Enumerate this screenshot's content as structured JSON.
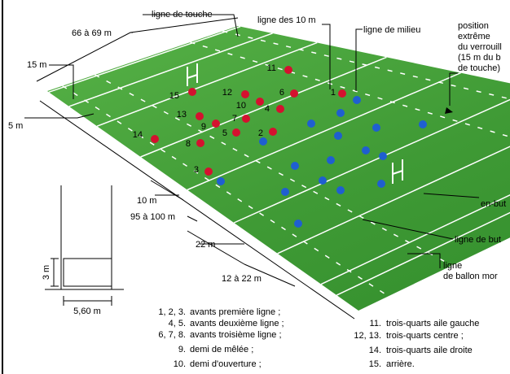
{
  "labels": {
    "touch_line": "ligne de touche",
    "ten_m_line": "ligne des 10 m",
    "half_way_line": "ligne de milieu",
    "lock_position": [
      "position",
      "extrême",
      "du verrouill",
      "(15 m du b",
      "de touche)"
    ],
    "width": "66 à 69 m",
    "fifteen_m": "15 m",
    "five_m": "5 m",
    "ten_m": "10 m",
    "length": "95 à 100 m",
    "twenty_two_m": "22 m",
    "in_goal_depth": "12 à 22 m",
    "in_goal": "en-but",
    "goal_line": "ligne de but",
    "dead_ball_line": [
      "ligne",
      "de ballon mor"
    ]
  },
  "inset": {
    "height": "3 m",
    "width": "5,60 m"
  },
  "players": [
    "1",
    "2",
    "3",
    "4",
    "5",
    "6",
    "7",
    "8",
    "9",
    "10",
    "11",
    "12",
    "13",
    "14",
    "15"
  ],
  "legend": {
    "left": [
      {
        "numbers": "1, 2, 3.",
        "role": "avants première ligne ;"
      },
      {
        "numbers": "4, 5.",
        "role": "avants deuxième ligne ;"
      },
      {
        "numbers": "6, 7, 8.",
        "role": "avants troisième ligne ;"
      },
      {
        "numbers": "9.",
        "role": "demi de mêlée ;"
      },
      {
        "numbers": "10.",
        "role": "demi d'ouverture ;"
      }
    ],
    "right": [
      {
        "numbers": "11.",
        "role": "trois-quarts aile gauche"
      },
      {
        "numbers": "12, 13.",
        "role": "trois-quarts centre ;"
      },
      {
        "numbers": "14.",
        "role": "trois-quarts aile droite"
      },
      {
        "numbers": "15.",
        "role": "arrière."
      }
    ]
  }
}
